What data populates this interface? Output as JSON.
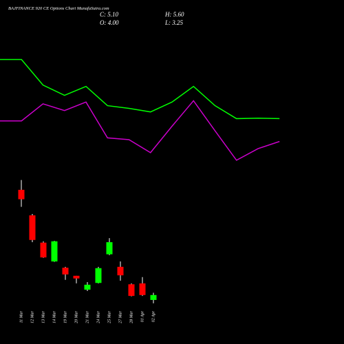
{
  "chart_data": [
    {
      "type": "candlestick",
      "title": "BAJFINANCE 920 CE Options Chart MunafaSutra.com",
      "ohlc_labels": [
        "C: 5.10",
        "H: 5.60",
        "O: 4.00",
        "L: 3.25"
      ],
      "categories": [
        "11 Mar",
        "12 Mar",
        "13 Mar",
        "14 Mar",
        "19 Mar",
        "20 Mar",
        "21 Mar",
        "24 Mar",
        "25 Mar",
        "27 Mar",
        "28 Mar",
        "01 Apr",
        "02 Apr"
      ],
      "open": [
        28.6,
        22.9,
        16.8,
        12.6,
        11.2,
        9.4,
        6.3,
        7.8,
        14.2,
        11.4,
        7.5,
        7.7,
        4.0
      ],
      "high": [
        30.8,
        23.2,
        17.1,
        17.2,
        11.4,
        9.4,
        8.0,
        11.4,
        17.8,
        12.6,
        7.7,
        9.1,
        5.6
      ],
      "low": [
        24.8,
        16.9,
        13.4,
        12.5,
        8.5,
        7.7,
        6.0,
        7.7,
        14.0,
        8.3,
        4.8,
        4.9,
        3.25
      ],
      "close": [
        26.5,
        17.4,
        13.5,
        17.1,
        9.7,
        8.8,
        7.4,
        11.1,
        16.9,
        9.5,
        4.9,
        5.1,
        5.1
      ],
      "up_color": "#00ff00",
      "down_color": "#ff0000",
      "ylim": [
        0,
        71
      ]
    },
    {
      "type": "line",
      "x": [
        0,
        1,
        2,
        3,
        4,
        5,
        6,
        7,
        8,
        9,
        10,
        11,
        12,
        13
      ],
      "xlim": [
        0,
        16
      ],
      "ylim": [
        0,
        71
      ],
      "series": [
        {
          "color": "#00ff00",
          "values": [
            57.7,
            57.7,
            52.0,
            49.7,
            51.7,
            47.4,
            46.8,
            46.0,
            48.2,
            51.7,
            47.4,
            44.5,
            44.6,
            44.5
          ]
        },
        {
          "color": "#cc00cc",
          "values": [
            44.0,
            44.0,
            47.8,
            46.3,
            48.2,
            40.2,
            39.8,
            36.9,
            42.8,
            48.5,
            41.8,
            35.2,
            37.8,
            39.4
          ]
        }
      ]
    }
  ]
}
